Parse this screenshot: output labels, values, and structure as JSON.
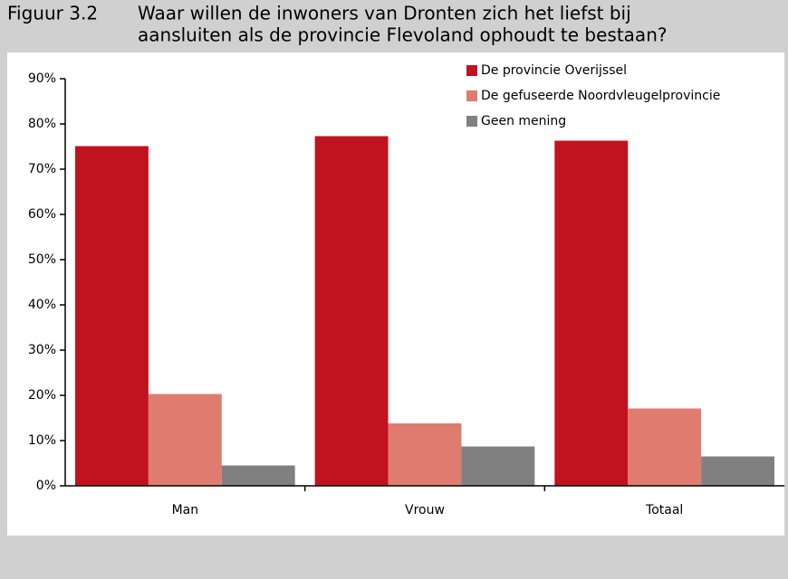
{
  "chart_data": {
    "type": "bar",
    "figure_label": "Figuur 3.2",
    "title": [
      "Waar willen de inwoners van Dronten zich het liefst bij",
      "aansluiten als de provincie Flevoland ophoudt te bestaan?"
    ],
    "categories": [
      "Man",
      "Vrouw",
      "Totaal"
    ],
    "series": [
      {
        "name": "De provincie Overijssel",
        "color": "#c1121f",
        "values": [
          75.1,
          77.3,
          76.3
        ]
      },
      {
        "name": "De gefuseerde Noordvleugelprovincie",
        "color": "#e07b6f",
        "values": [
          20.3,
          13.8,
          17.1
        ]
      },
      {
        "name": "Geen mening",
        "color": "#808080",
        "values": [
          4.5,
          8.7,
          6.5
        ]
      }
    ],
    "ylim": [
      0,
      90
    ],
    "yticks": [
      {
        "value": 0,
        "label": "0%"
      },
      {
        "value": 10,
        "label": "10%"
      },
      {
        "value": 20,
        "label": "20%"
      },
      {
        "value": 30,
        "label": "30%"
      },
      {
        "value": 40,
        "label": "40%"
      },
      {
        "value": 50,
        "label": "50%"
      },
      {
        "value": 60,
        "label": "60%"
      },
      {
        "value": 70,
        "label": "70%"
      },
      {
        "value": 80,
        "label": "80%"
      },
      {
        "value": 90,
        "label": "90%"
      }
    ],
    "grid": false,
    "legend": "top-right"
  }
}
